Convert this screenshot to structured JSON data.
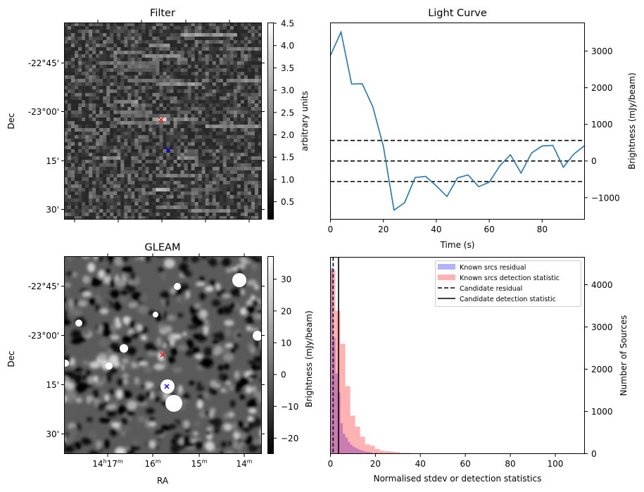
{
  "chart_data": [
    {
      "type": "heatmap",
      "title": "Filter",
      "xlabel": "",
      "ylabel": "Dec",
      "y_ticks": [
        "-22°45'",
        "-23°00'",
        "15'",
        "30'"
      ],
      "colorbar": {
        "label": "arbitrary units",
        "ticks": [
          "0.5",
          "1.0",
          "1.5",
          "2.0",
          "2.5",
          "3.0",
          "3.5",
          "4.0",
          "4.5"
        ],
        "range": [
          0.1,
          4.5
        ],
        "colormap": "gray"
      },
      "markers": [
        {
          "color": "#ff0000",
          "symbol": "x",
          "label": "red-cross"
        },
        {
          "color": "#0000ff",
          "symbol": "x",
          "label": "blue-cross"
        }
      ]
    },
    {
      "type": "line",
      "title": "Light Curve",
      "xlabel": "Time (s)",
      "ylabel": "Brightness (mJy/beam)",
      "xlim": [
        0,
        96
      ],
      "ylim": [
        -1590,
        3770
      ],
      "x_ticks": [
        0,
        20,
        40,
        60,
        80
      ],
      "y_ticks": [
        -1000,
        0,
        1000,
        2000,
        3000
      ],
      "y_tick_labels": [
        "−1000",
        "0",
        "1000",
        "2000",
        "3000"
      ],
      "series": [
        {
          "name": "light curve",
          "color": "#1f77b4",
          "x": [
            0,
            4,
            8,
            12,
            16,
            20,
            24,
            28,
            32,
            36,
            40,
            44,
            48,
            52,
            56,
            60,
            64,
            68,
            72,
            76,
            80,
            84,
            88,
            92,
            96
          ],
          "values": [
            2880,
            3520,
            2100,
            2110,
            1480,
            400,
            -1340,
            -1140,
            -450,
            -420,
            -680,
            -970,
            -460,
            -380,
            -700,
            -580,
            -130,
            170,
            -330,
            220,
            410,
            430,
            -170,
            190,
            420
          ]
        }
      ],
      "hlines": [
        {
          "y": 560,
          "style": "dashed"
        },
        {
          "y": 0,
          "style": "dashed"
        },
        {
          "y": -560,
          "style": "dashed"
        }
      ],
      "grid": false
    },
    {
      "type": "heatmap",
      "title": "GLEAM",
      "xlabel": "RA",
      "ylabel": "Dec",
      "x_ticks": [
        "14h17m",
        "16m",
        "15m",
        "14m"
      ],
      "y_ticks": [
        "-22°45'",
        "-23°00'",
        "15'",
        "30'"
      ],
      "colorbar": {
        "label": "Brightness (mJy/beam)",
        "ticks": [
          "−20",
          "−10",
          "0",
          "10",
          "20",
          "30"
        ],
        "range": [
          -25,
          37
        ],
        "colormap": "gray"
      },
      "markers": [
        {
          "color": "#ff0000",
          "symbol": "x",
          "label": "red-cross"
        },
        {
          "color": "#0000ff",
          "symbol": "x",
          "label": "blue-cross"
        }
      ]
    },
    {
      "type": "bar",
      "title": "",
      "xlabel": "Normalised stdev or detection statistics",
      "ylabel_left": "Brightness (mJy/beam)",
      "ylabel": "Number of Sources",
      "xlim": [
        0,
        113
      ],
      "ylim": [
        0,
        4650
      ],
      "x_ticks": [
        0,
        20,
        40,
        60,
        80,
        100
      ],
      "y_ticks": [
        0,
        1000,
        2000,
        3000,
        4000
      ],
      "legend_position": "top-right",
      "series": [
        {
          "name": "Known srcs residual",
          "color": "#0000ff",
          "alpha": 0.3,
          "bin_width": 1.1,
          "bin_starts": [
            0,
            1.1,
            2.2,
            3.3,
            4.4,
            5.5,
            6.6,
            7.7,
            8.8,
            9.9,
            11,
            12.1,
            13.2,
            14.3,
            15.4,
            16.5,
            17.6,
            19.8,
            22,
            26,
            30
          ],
          "values": [
            4400,
            2750,
            1900,
            1450,
            720,
            470,
            380,
            280,
            210,
            160,
            130,
            100,
            80,
            60,
            50,
            40,
            30,
            25,
            20,
            15,
            10
          ]
        },
        {
          "name": "Known srcs detection statistic",
          "color": "#ff0000",
          "alpha": 0.3,
          "bin_width": 2.2,
          "bin_starts": [
            0,
            2.2,
            4.4,
            6.6,
            8.8,
            11,
            13.2,
            15.4,
            17.6,
            19.8,
            22,
            24.2,
            26.4,
            28.6,
            30.8,
            33,
            35.2,
            40,
            50,
            55,
            68,
            70,
            80,
            85,
            106
          ],
          "values": [
            4350,
            3380,
            2600,
            1600,
            900,
            640,
            400,
            220,
            190,
            110,
            70,
            60,
            50,
            40,
            20,
            20,
            10,
            10,
            10,
            10,
            10,
            10,
            10,
            10,
            10
          ]
        }
      ],
      "vlines": [
        {
          "name": "Candidate residual",
          "x": 1.2,
          "style": "dashed"
        },
        {
          "name": "Candidate detection statistic",
          "x": 3.6,
          "style": "solid"
        }
      ],
      "legend": [
        "Known srcs residual",
        "Known srcs detection statistic",
        "Candidate residual",
        "Candidate detection statistic"
      ]
    }
  ]
}
